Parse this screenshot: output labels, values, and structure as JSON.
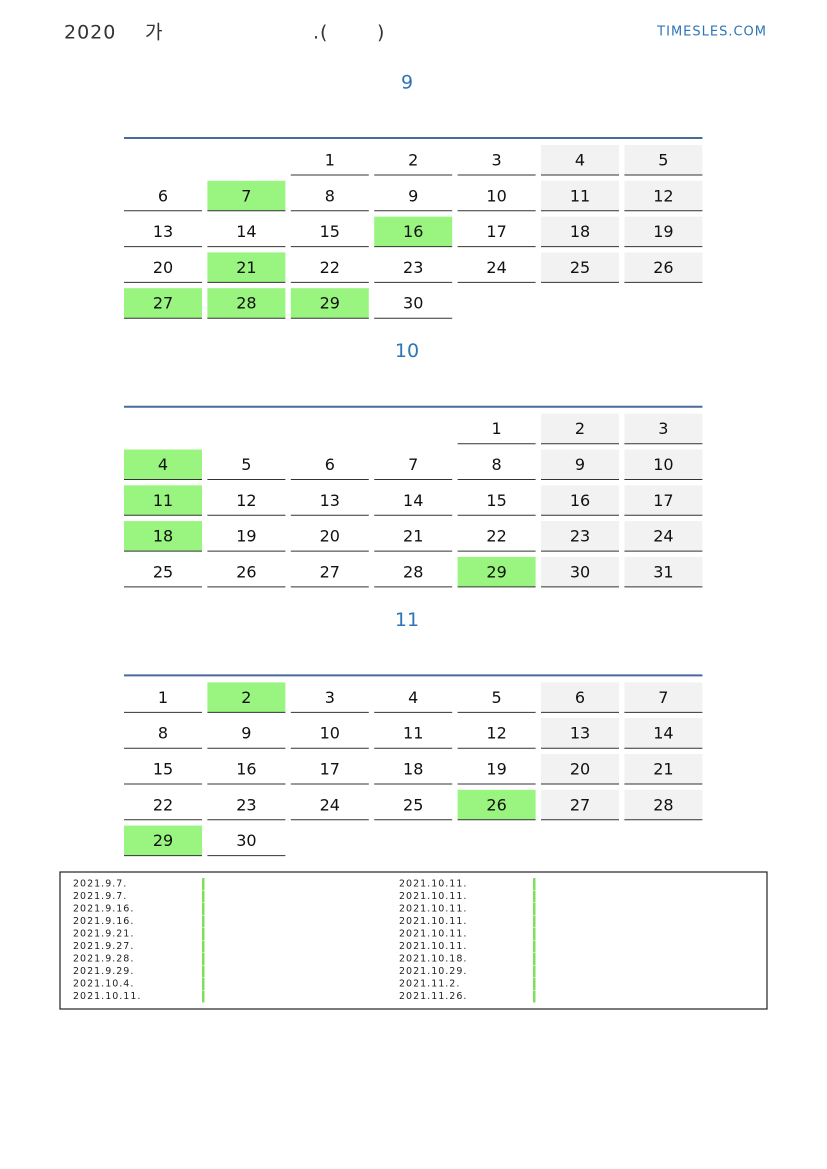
{
  "header": {
    "title_parts": [
      "2020",
      "가",
      ".(",
      ")"
    ],
    "site": "TIMESLES.COM"
  },
  "months": [
    {
      "title": "9",
      "weeks": [
        [
          null,
          null,
          1,
          2,
          3,
          4,
          5
        ],
        [
          6,
          7,
          8,
          9,
          10,
          11,
          12
        ],
        [
          13,
          14,
          15,
          16,
          17,
          18,
          19
        ],
        [
          20,
          21,
          22,
          23,
          24,
          25,
          26
        ],
        [
          27,
          28,
          29,
          30,
          null,
          null,
          null
        ]
      ],
      "highlighted": [
        7,
        16,
        21,
        27,
        28,
        29
      ]
    },
    {
      "title": "10",
      "weeks": [
        [
          null,
          null,
          null,
          null,
          1,
          2,
          3
        ],
        [
          4,
          5,
          6,
          7,
          8,
          9,
          10
        ],
        [
          11,
          12,
          13,
          14,
          15,
          16,
          17
        ],
        [
          18,
          19,
          20,
          21,
          22,
          23,
          24
        ],
        [
          25,
          26,
          27,
          28,
          29,
          30,
          31
        ]
      ],
      "highlighted": [
        4,
        11,
        18,
        29
      ]
    },
    {
      "title": "11",
      "weeks": [
        [
          1,
          2,
          3,
          4,
          5,
          6,
          7
        ],
        [
          8,
          9,
          10,
          11,
          12,
          13,
          14
        ],
        [
          15,
          16,
          17,
          18,
          19,
          20,
          21
        ],
        [
          22,
          23,
          24,
          25,
          26,
          27,
          28
        ],
        [
          29,
          30,
          null,
          null,
          null,
          null,
          null
        ]
      ],
      "highlighted": [
        2,
        26,
        29
      ]
    }
  ],
  "notes": {
    "left": [
      "2021.9.7.",
      "2021.9.7.",
      "2021.9.16.",
      "2021.9.16.",
      "2021.9.21.",
      "2021.9.27.",
      "2021.9.28.",
      "2021.9.29.",
      "2021.10.4.",
      "2021.10.11."
    ],
    "right": [
      "2021.10.11.",
      "2021.10.11.",
      "2021.10.11.",
      "2021.10.11.",
      "2021.10.11.",
      "2021.10.11.",
      "2021.10.18.",
      "2021.10.29.",
      "2021.11.2.",
      "2021.11.26."
    ]
  }
}
